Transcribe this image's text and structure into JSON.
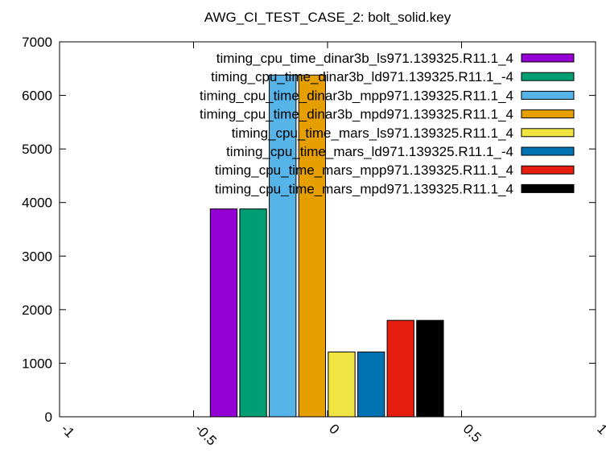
{
  "chart_data": {
    "type": "bar",
    "title": "AWG_CI_TEST_CASE_2: bolt_solid.key",
    "xlabel": "",
    "ylabel": "",
    "xlim": [
      -1,
      1
    ],
    "ylim": [
      0,
      7000
    ],
    "x_ticks": [
      -1,
      -0.5,
      0,
      0.5,
      1
    ],
    "x_tick_labels": [
      "-1",
      "-0.5",
      "0",
      "0.5",
      "1"
    ],
    "y_ticks": [
      0,
      1000,
      2000,
      3000,
      4000,
      5000,
      6000,
      7000
    ],
    "y_tick_labels": [
      "0",
      "1000",
      "2000",
      "3000",
      "4000",
      "5000",
      "6000",
      "7000"
    ],
    "grid": false,
    "legend_position": "top-right",
    "series": [
      {
        "name": "timing_cpu_time_dinar3b_ls971.139325.R11.1_4",
        "x": -0.3875,
        "width": 0.1,
        "value": 3880,
        "color": "#9400d3"
      },
      {
        "name": "timing_cpu_time_dinar3b_ld971.139325.R11.1_-4",
        "x": -0.2775,
        "width": 0.1,
        "value": 3880,
        "color": "#009e73"
      },
      {
        "name": "timing_cpu_time_dinar3b_mpp971.139325.R11.1_4",
        "x": -0.1675,
        "width": 0.1,
        "value": 6380,
        "color": "#56b4e9"
      },
      {
        "name": "timing_cpu_time_dinar3b_mpd971.139325.R11.1_4",
        "x": -0.0575,
        "width": 0.1,
        "value": 6380,
        "color": "#e69f00"
      },
      {
        "name": "timing_cpu_time_mars_ls971.139325.R11.1_4",
        "x": 0.0525,
        "width": 0.1,
        "value": 1210,
        "color": "#f0e442"
      },
      {
        "name": "timing_cpu_time_mars_ld971.139325.R11.1_-4",
        "x": 0.1625,
        "width": 0.1,
        "value": 1210,
        "color": "#0072b2"
      },
      {
        "name": "timing_cpu_time_mars_mpp971.139325.R11.1_4",
        "x": 0.2725,
        "width": 0.1,
        "value": 1800,
        "color": "#e51e10"
      },
      {
        "name": "timing_cpu_time_mars_mpd971.139325.R11.1_4",
        "x": 0.3825,
        "width": 0.1,
        "value": 1800,
        "color": "#000000"
      }
    ]
  }
}
